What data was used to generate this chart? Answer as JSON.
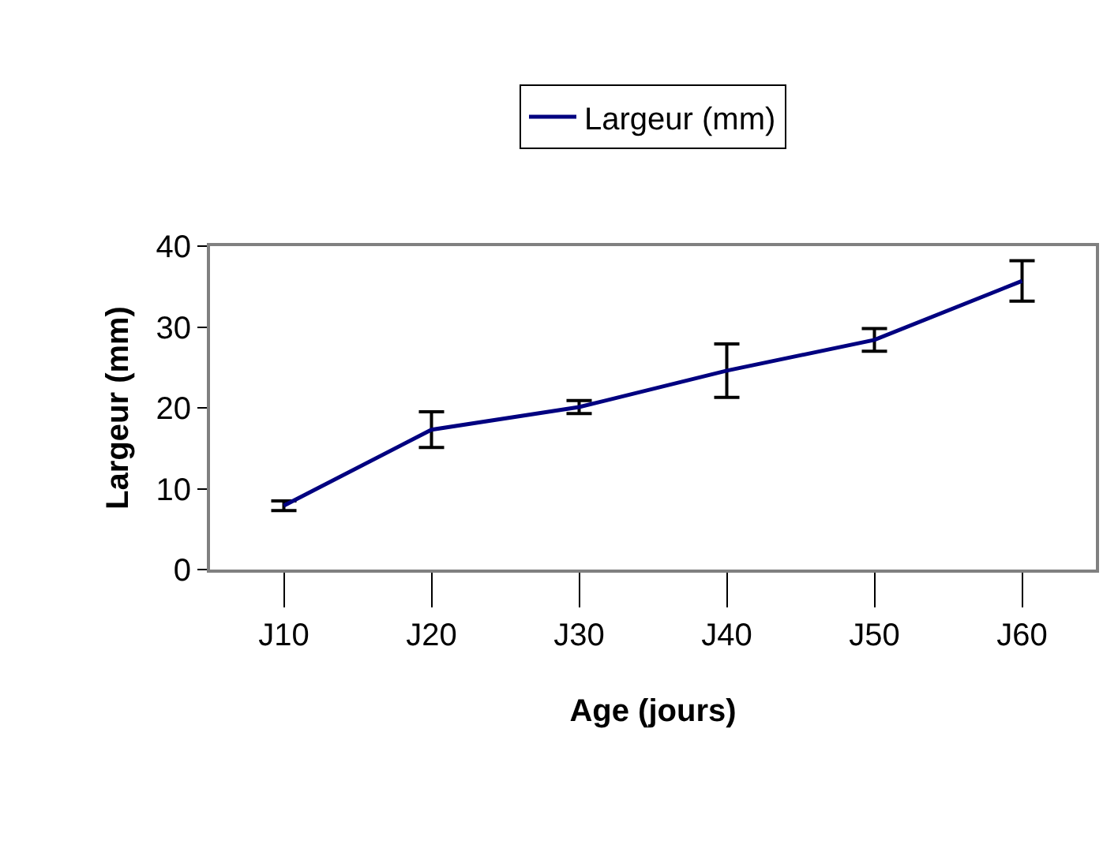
{
  "chart_data": {
    "type": "line",
    "xlabel": "Age (jours)",
    "ylabel": "Largeur (mm)",
    "categories": [
      "J10",
      "J20",
      "J30",
      "J40",
      "J50",
      "J60"
    ],
    "series": [
      {
        "name": "Largeur (mm)",
        "color": "#000080",
        "values": [
          7.9,
          17.3,
          20.1,
          24.6,
          28.4,
          35.7
        ],
        "errors": [
          0.6,
          2.2,
          0.8,
          3.3,
          1.4,
          2.5
        ]
      }
    ],
    "ylim": [
      0,
      40
    ],
    "yticks": [
      0,
      10,
      20,
      30,
      40
    ],
    "legend": "top",
    "marker": "none",
    "line_style": "solid"
  }
}
